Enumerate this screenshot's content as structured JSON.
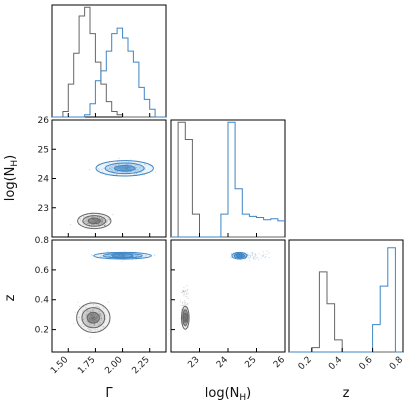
{
  "chart_data": {
    "type": "corner",
    "parameters": [
      {
        "key": "gamma",
        "label": "Γ",
        "range": [
          1.35,
          2.4
        ],
        "ticks": [
          1.5,
          1.75,
          2.0,
          2.25
        ],
        "tick_labels": [
          "1.50",
          "1.75",
          "2.00",
          "2.25"
        ]
      },
      {
        "key": "lognh",
        "label_main": "log(N",
        "label_sub": "H",
        "label_close": ")",
        "range": [
          22.0,
          26.0
        ],
        "ticks": [
          23,
          24,
          25,
          26
        ],
        "tick_labels": [
          "23",
          "24",
          "25",
          "26"
        ]
      },
      {
        "key": "z",
        "label": "z",
        "range": [
          0.05,
          0.8
        ],
        "ticks": [
          0.2,
          0.4,
          0.6,
          0.8
        ],
        "tick_labels": [
          "0.2",
          "0.4",
          "0.6",
          "0.8"
        ]
      }
    ],
    "series": [
      {
        "color": "#666666",
        "marginals": {
          "gamma": {
            "edges": [
              1.35,
              1.4,
              1.45,
              1.5,
              1.55,
              1.6,
              1.65,
              1.7,
              1.75,
              1.8,
              1.85,
              1.9,
              1.95,
              2.0,
              2.05,
              2.1,
              2.15,
              2.2,
              2.25,
              2.3,
              2.35,
              2.4
            ],
            "counts": [
              0,
              0,
              0.05,
              0.3,
              0.58,
              0.92,
              1.0,
              0.76,
              0.5,
              0.3,
              0.14,
              0.05,
              0.02,
              0,
              0,
              0,
              0,
              0,
              0,
              0,
              0
            ]
          },
          "lognh": {
            "edges": [
              22.0,
              22.25,
              22.5,
              22.75,
              23.0,
              23.25,
              23.5,
              23.75,
              24.0,
              24.25,
              24.5,
              24.75,
              25.0,
              25.25,
              25.5,
              25.75,
              26.0
            ],
            "counts": [
              0,
              1.0,
              0.85,
              0.2,
              0,
              0,
              0,
              0,
              0,
              0,
              0,
              0,
              0,
              0,
              0,
              0
            ]
          },
          "z": {
            "edges": [
              0.05,
              0.1,
              0.15,
              0.2,
              0.25,
              0.3,
              0.35,
              0.4,
              0.45,
              0.5,
              0.55,
              0.6,
              0.65,
              0.7,
              0.75,
              0.8
            ],
            "counts": [
              0,
              0,
              0,
              0.04,
              0.73,
              0.44,
              0.11,
              0,
              0,
              0,
              0,
              0,
              0,
              0,
              0
            ]
          }
        },
        "joint": {
          "gamma_lognh": {
            "center": [
              1.74,
              22.55
            ],
            "spread": [
              0.07,
              0.12
            ],
            "tail": [
              0.12,
              0.0
            ]
          },
          "gamma_z": {
            "center": [
              1.73,
              0.28
            ],
            "spread": [
              0.07,
              0.045
            ],
            "tail": [
              0,
              0
            ]
          },
          "lognh_z": {
            "center": [
              22.5,
              0.28
            ],
            "spread": [
              0.06,
              0.035
            ],
            "tail": [
              0.1,
              0.2
            ]
          }
        }
      },
      {
        "color": "#3d85c6",
        "marginals": {
          "gamma": {
            "edges": [
              1.35,
              1.4,
              1.45,
              1.5,
              1.55,
              1.6,
              1.65,
              1.7,
              1.75,
              1.8,
              1.85,
              1.9,
              1.95,
              2.0,
              2.05,
              2.1,
              2.15,
              2.2,
              2.25,
              2.3,
              2.35,
              2.4
            ],
            "counts": [
              0,
              0,
              0,
              0,
              0,
              0,
              0.02,
              0.12,
              0.33,
              0.42,
              0.6,
              0.76,
              0.81,
              0.72,
              0.6,
              0.5,
              0.27,
              0.16,
              0.07,
              0,
              0
            ]
          },
          "lognh": {
            "edges": [
              22.0,
              22.25,
              22.5,
              22.75,
              23.0,
              23.25,
              23.5,
              23.75,
              24.0,
              24.25,
              24.5,
              24.75,
              25.0,
              25.25,
              25.5,
              25.75,
              26.0
            ],
            "counts": [
              0,
              0,
              0,
              0,
              0,
              0,
              0,
              0.2,
              1.0,
              0.42,
              0.2,
              0.18,
              0.17,
              0.15,
              0.16,
              0.14
            ]
          },
          "z": {
            "edges": [
              0.05,
              0.1,
              0.15,
              0.2,
              0.25,
              0.3,
              0.35,
              0.4,
              0.45,
              0.5,
              0.55,
              0.6,
              0.65,
              0.7,
              0.75,
              0.8
            ],
            "counts": [
              0,
              0,
              0,
              0,
              0,
              0,
              0,
              0,
              0,
              0,
              0,
              0.25,
              0.6,
              0.95,
              0
            ]
          }
        },
        "joint": {
          "gamma_lognh": {
            "center": [
              2.02,
              24.35
            ],
            "spread": [
              0.12,
              0.12
            ],
            "tail": [
              0,
              0.5
            ]
          },
          "gamma_z": {
            "center": [
              2.0,
              0.695
            ],
            "spread": [
              0.12,
              0.01
            ],
            "tail": [
              0,
              0
            ]
          },
          "lognh_z": {
            "center": [
              24.4,
              0.695
            ],
            "spread": [
              0.12,
              0.01
            ],
            "tail": [
              1.0,
              0
            ]
          }
        }
      }
    ]
  }
}
